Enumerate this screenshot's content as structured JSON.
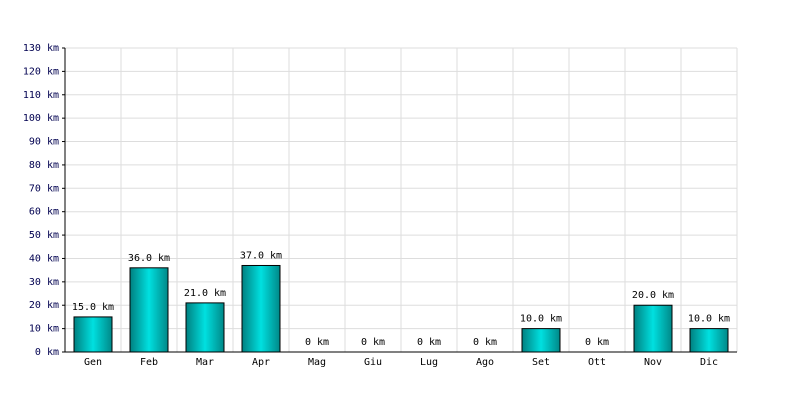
{
  "chart_data": {
    "type": "bar",
    "categories": [
      "Gen",
      "Feb",
      "Mar",
      "Apr",
      "Mag",
      "Giu",
      "Lug",
      "Ago",
      "Set",
      "Ott",
      "Nov",
      "Dic"
    ],
    "values": [
      15,
      36,
      21,
      37,
      0,
      0,
      0,
      0,
      10,
      0,
      20,
      10
    ],
    "value_labels": [
      "15.0 km",
      "36.0 km",
      "21.0 km",
      "37.0 km",
      "0 km",
      "0 km",
      "0 km",
      "0 km",
      "10.0 km",
      "0 km",
      "20.0 km",
      "10.0 km"
    ],
    "color": "#00e0e0",
    "ylim": [
      0,
      130
    ],
    "yticks": [
      {
        "value": 0,
        "label": "0 km"
      },
      {
        "value": 10,
        "label": "10 km"
      },
      {
        "value": 20,
        "label": "20 km"
      },
      {
        "value": 30,
        "label": "30 km"
      },
      {
        "value": 40,
        "label": "40 km"
      },
      {
        "value": 50,
        "label": "50 km"
      },
      {
        "value": 60,
        "label": "60 km"
      },
      {
        "value": 70,
        "label": "70 km"
      },
      {
        "value": 80,
        "label": "80 km"
      },
      {
        "value": 90,
        "label": "90 km"
      },
      {
        "value": 100,
        "label": "100 km"
      },
      {
        "value": 110,
        "label": "110 km"
      },
      {
        "value": 120,
        "label": "120 km"
      },
      {
        "value": 130,
        "label": "130 km"
      }
    ],
    "grid": true
  }
}
